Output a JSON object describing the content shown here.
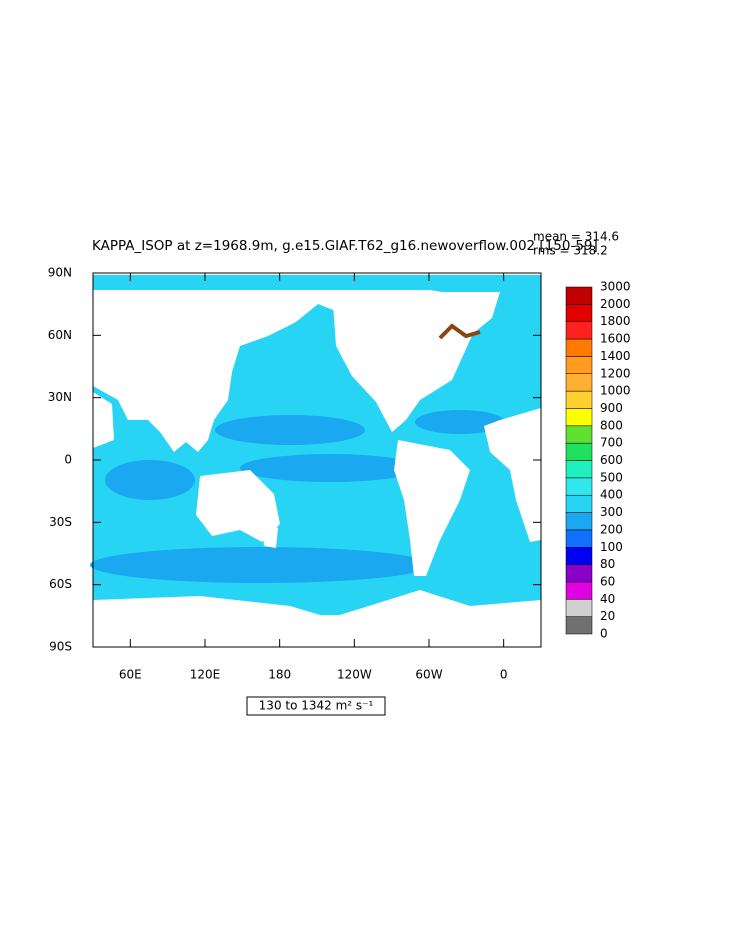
{
  "chart_data": {
    "type": "map",
    "title": "KAPPA_ISOP at z=1968.9m, g.e15.GIAF.T62_g16.newoverflow.002 [150-59]",
    "stats": [
      "mean = 314.6",
      "rms = 318.2"
    ],
    "range_label": "130 to 1342 m² s⁻¹",
    "xlim": [
      30,
      390
    ],
    "ylim": [
      -90,
      90
    ],
    "xticks": [
      {
        "value": 60,
        "label": "60E"
      },
      {
        "value": 120,
        "label": "120E"
      },
      180,
      {
        "value": 240,
        "label": "120W"
      },
      {
        "value": 300,
        "label": "60W"
      },
      {
        "value": 360,
        "label": "0"
      }
    ],
    "yticks": [
      {
        "value": -90,
        "label": "90S"
      },
      {
        "value": -60,
        "label": "60S"
      },
      {
        "value": -30,
        "label": "30S"
      },
      0,
      {
        "value": 30,
        "label": "30N"
      },
      {
        "value": 60,
        "label": "60N"
      },
      {
        "value": 90,
        "label": "90N"
      }
    ],
    "colorbar": {
      "levels": [
        0,
        20,
        40,
        60,
        80,
        100,
        200,
        300,
        400,
        500,
        600,
        700,
        800,
        900,
        1000,
        1200,
        1400,
        1600,
        1800,
        2000,
        3000
      ],
      "colors": [
        "#707070",
        "#d0d0d0",
        "#e000e0",
        "#8a00c8",
        "#0000f0",
        "#1070ff",
        "#1aa8f0",
        "#28d4f4",
        "#30e8ec",
        "#20f0c0",
        "#20e060",
        "#60e030",
        "#ffff00",
        "#ffd030",
        "#ffb030",
        "#ff9c20",
        "#ff7a00",
        "#ff2020",
        "#e00000",
        "#c00000"
      ]
    }
  }
}
